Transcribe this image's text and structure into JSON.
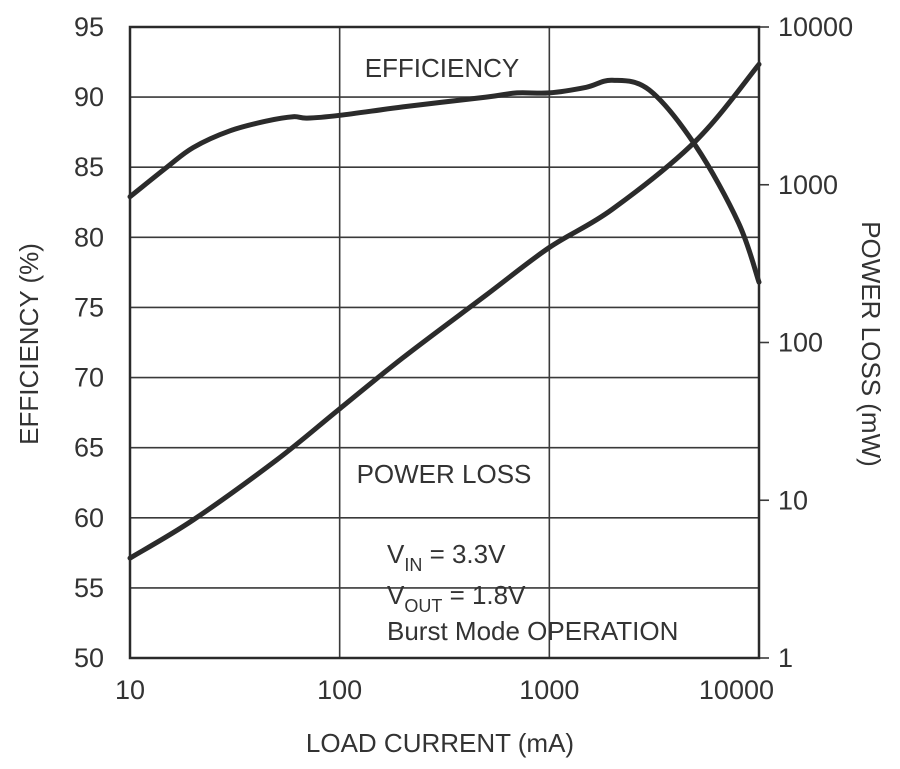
{
  "chart_data": {
    "type": "line",
    "xlabel": "LOAD CURRENT (mA)",
    "ylabel_left": "EFFICIENCY (%)",
    "ylabel_right": "POWER LOSS (mW)",
    "x_scale": "log",
    "xlim": [
      10,
      10000
    ],
    "x_ticks": [
      "10",
      "100",
      "1000",
      "10000"
    ],
    "y_left_lim": [
      50,
      95
    ],
    "y_left_ticks": [
      "50",
      "55",
      "60",
      "65",
      "70",
      "75",
      "80",
      "85",
      "90",
      "95"
    ],
    "y_right_scale": "log",
    "y_right_lim": [
      1,
      10000
    ],
    "y_right_ticks": [
      "1",
      "10",
      "100",
      "1000",
      "10000"
    ],
    "grid": true,
    "series": [
      {
        "name": "EFFICIENCY",
        "axis": "left",
        "x": [
          10,
          15,
          20,
          30,
          45,
          60,
          70,
          100,
          200,
          500,
          700,
          1000,
          1500,
          2000,
          3000,
          5000,
          8000,
          10000
        ],
        "y": [
          82.9,
          85.0,
          86.4,
          87.6,
          88.3,
          88.6,
          88.5,
          88.7,
          89.3,
          90.0,
          90.3,
          90.3,
          90.7,
          91.2,
          90.5,
          86.5,
          81.0,
          76.8
        ]
      },
      {
        "name": "POWER LOSS",
        "axis": "right",
        "x": [
          10,
          20,
          50,
          100,
          200,
          500,
          1000,
          2000,
          5000,
          10000
        ],
        "y": [
          4.3,
          7.5,
          18,
          38,
          80,
          200,
          400,
          700,
          1900,
          5800
        ]
      }
    ],
    "annotations": [
      {
        "text": "EFFICIENCY"
      },
      {
        "text": "POWER LOSS"
      },
      {
        "text": "V",
        "sub": "IN",
        "rest": " = 3.3V"
      },
      {
        "text": "V",
        "sub": "OUT",
        "rest": " = 1.8V"
      },
      {
        "text": "Burst Mode OPERATION"
      }
    ]
  }
}
